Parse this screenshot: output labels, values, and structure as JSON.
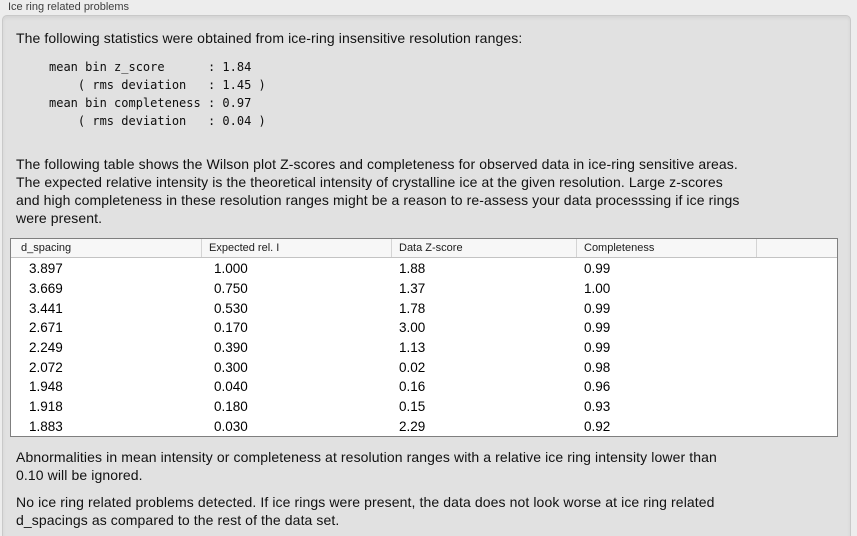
{
  "panel_title": "Ice ring related problems",
  "main": {
    "intro": "The following statistics were obtained from ice-ring insensitive resolution ranges:",
    "stats_block": "mean bin z_score      : 1.84\n    ( rms deviation   : 1.45 )\nmean bin completeness : 0.97\n    ( rms deviation   : 0.04 )",
    "stats": {
      "mean_bin_z_score": "1.84",
      "z_score_rms_deviation": "1.45",
      "mean_bin_completeness": "0.97",
      "completeness_rms_deviation": "0.04"
    },
    "table_description": "The following table shows the Wilson plot Z-scores and completeness for observed data in ice-ring sensitive areas.\nThe expected relative intensity is the theoretical intensity of crystalline ice at the given resolution. Large z-scores\nand high completeness in these resolution ranges might be a reason to re-assess your data processsing if ice rings\nwere present.",
    "table": {
      "headers": [
        "d_spacing",
        "Expected rel. I",
        "Data Z-score",
        "Completeness",
        ""
      ],
      "rows": [
        [
          "3.897",
          "1.000",
          "1.88",
          "0.99"
        ],
        [
          "3.669",
          "0.750",
          "1.37",
          "1.00"
        ],
        [
          "3.441",
          "0.530",
          "1.78",
          "0.99"
        ],
        [
          "2.671",
          "0.170",
          "3.00",
          "0.99"
        ],
        [
          "2.249",
          "0.390",
          "1.13",
          "0.99"
        ],
        [
          "2.072",
          "0.300",
          "0.02",
          "0.98"
        ],
        [
          "1.948",
          "0.040",
          "0.16",
          "0.96"
        ],
        [
          "1.918",
          "0.180",
          "0.15",
          "0.93"
        ],
        [
          "1.883",
          "0.030",
          "2.29",
          "0.92"
        ]
      ]
    },
    "ignore_note": "Abnormalities in mean intensity or completeness at resolution ranges with a relative ice ring intensity lower than\n0.10 will be ignored.",
    "conclusion": "No ice ring related problems detected. If ice rings were present, the data does not look worse at ice ring related\nd_spacings as compared to the rest of the data set."
  },
  "colors": {
    "outer_bg": "#ededed",
    "panel_bg": "#e1e1e1",
    "panel_border": "#c9c9c9",
    "table_border": "#7f7f7f",
    "table_header_bg": "#f7f7f7",
    "table_bg": "#ffffff",
    "text": "#111111",
    "title_text": "#3e3e3e"
  }
}
